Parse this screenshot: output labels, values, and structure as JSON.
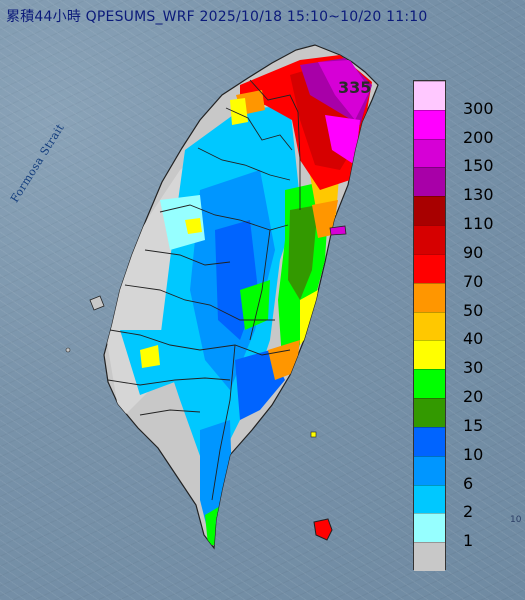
{
  "title": "累積44小時 QPESUMS_WRF 2025/10/18 15:10~10/20 11:10",
  "labels": {
    "strait": "Formosa Strait",
    "max_value": "335"
  },
  "legend": {
    "items": [
      {
        "value": "300",
        "color": "#ffc8ff"
      },
      {
        "value": "200",
        "color": "#ff00ff"
      },
      {
        "value": "150",
        "color": "#d600d6"
      },
      {
        "value": "130",
        "color": "#a800a8"
      },
      {
        "value": "110",
        "color": "#a80000"
      },
      {
        "value": "90",
        "color": "#d60000"
      },
      {
        "value": "70",
        "color": "#ff0000"
      },
      {
        "value": "50",
        "color": "#ff9600"
      },
      {
        "value": "40",
        "color": "#ffc800"
      },
      {
        "value": "30",
        "color": "#ffff00"
      },
      {
        "value": "20",
        "color": "#00ff00"
      },
      {
        "value": "15",
        "color": "#339900"
      },
      {
        "value": "10",
        "color": "#0064ff"
      },
      {
        "value": "6",
        "color": "#0096ff"
      },
      {
        "value": "2",
        "color": "#00c8ff"
      },
      {
        "value": "1",
        "color": "#96ffff"
      },
      {
        "value": "",
        "color": "#c8c8c8"
      }
    ]
  }
}
